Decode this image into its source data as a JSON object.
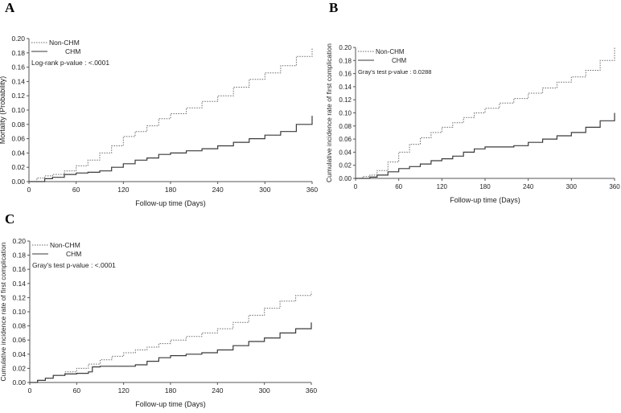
{
  "chart_data": [
    {
      "panel": "A",
      "type": "line",
      "title": "",
      "xlabel": "Follow-up time (Days)",
      "ylabel": "Mortality (Probability)",
      "xlim": [
        0,
        360
      ],
      "ylim": [
        0,
        0.2
      ],
      "xticks": [
        "0",
        "60",
        "120",
        "180",
        "240",
        "300",
        "360"
      ],
      "yticks": [
        "0.00",
        "0.02",
        "0.04",
        "0.06",
        "0.08",
        "0.10",
        "0.12",
        "0.14",
        "0.16",
        "0.18",
        "0.20"
      ],
      "legend": {
        "entries": [
          "Non-CHM",
          "CHM"
        ],
        "placement": "top-left"
      },
      "annotation": "Log-rank p-value : <.0001",
      "grid": false,
      "series": [
        {
          "name": "Non-CHM",
          "style": "dotted",
          "color": "#6a6a6a",
          "x": [
            0,
            10,
            20,
            30,
            45,
            60,
            75,
            90,
            105,
            120,
            135,
            150,
            165,
            180,
            200,
            220,
            240,
            260,
            280,
            300,
            320,
            340,
            360
          ],
          "y": [
            0,
            0.005,
            0.008,
            0.01,
            0.015,
            0.022,
            0.03,
            0.04,
            0.05,
            0.063,
            0.07,
            0.078,
            0.088,
            0.095,
            0.103,
            0.112,
            0.12,
            0.132,
            0.143,
            0.152,
            0.162,
            0.175,
            0.187
          ]
        },
        {
          "name": "CHM",
          "style": "solid",
          "color": "#3a3a3a",
          "x": [
            0,
            10,
            20,
            30,
            45,
            60,
            75,
            90,
            105,
            120,
            135,
            150,
            165,
            180,
            200,
            220,
            240,
            260,
            280,
            300,
            320,
            340,
            360
          ],
          "y": [
            0,
            0,
            0.004,
            0.006,
            0.01,
            0.012,
            0.013,
            0.015,
            0.02,
            0.025,
            0.03,
            0.033,
            0.038,
            0.04,
            0.043,
            0.046,
            0.05,
            0.055,
            0.06,
            0.065,
            0.07,
            0.08,
            0.092
          ]
        }
      ]
    },
    {
      "panel": "B",
      "type": "line",
      "title": "",
      "xlabel": "Follow-up time (Days)",
      "ylabel": "Cumulative incidence rate of first complication",
      "xlim": [
        0,
        360
      ],
      "ylim": [
        0,
        0.2
      ],
      "xticks": [
        "0",
        "60",
        "120",
        "180",
        "240",
        "300",
        "360"
      ],
      "yticks": [
        "0.00",
        "0.02",
        "0.04",
        "0.06",
        "0.08",
        "0.10",
        "0.12",
        "0.14",
        "0.16",
        "0.18",
        "0.20"
      ],
      "legend": {
        "entries": [
          "Non-CHM",
          "CHM"
        ],
        "placement": "top-left"
      },
      "annotation": "Gray's test p-value : 0.0288",
      "grid": false,
      "series": [
        {
          "name": "Non-CHM",
          "style": "dotted",
          "color": "#6a6a6a",
          "x": [
            0,
            10,
            20,
            30,
            45,
            60,
            75,
            90,
            105,
            120,
            135,
            150,
            165,
            180,
            200,
            220,
            240,
            260,
            280,
            300,
            320,
            340,
            360
          ],
          "y": [
            0,
            0.003,
            0.005,
            0.012,
            0.025,
            0.04,
            0.052,
            0.062,
            0.07,
            0.078,
            0.085,
            0.093,
            0.1,
            0.107,
            0.115,
            0.122,
            0.13,
            0.138,
            0.147,
            0.155,
            0.165,
            0.18,
            0.2
          ]
        },
        {
          "name": "CHM",
          "style": "solid",
          "color": "#3a3a3a",
          "x": [
            0,
            10,
            20,
            30,
            45,
            60,
            75,
            90,
            105,
            120,
            135,
            150,
            165,
            180,
            200,
            220,
            240,
            260,
            280,
            300,
            320,
            340,
            360
          ],
          "y": [
            0,
            0,
            0.002,
            0.005,
            0.01,
            0.015,
            0.018,
            0.022,
            0.027,
            0.03,
            0.034,
            0.04,
            0.045,
            0.048,
            0.048,
            0.05,
            0.055,
            0.06,
            0.065,
            0.07,
            0.078,
            0.088,
            0.1
          ]
        }
      ]
    },
    {
      "panel": "C",
      "type": "line",
      "title": "",
      "xlabel": "Follow-up time (Days)",
      "ylabel": "Cumulative incidence rate of first complication",
      "xlim": [
        0,
        360
      ],
      "ylim": [
        0,
        0.2
      ],
      "xticks": [
        "0",
        "60",
        "120",
        "180",
        "240",
        "300",
        "360"
      ],
      "yticks": [
        "0.00",
        "0.02",
        "0.04",
        "0.06",
        "0.08",
        "0.10",
        "0.12",
        "0.14",
        "0.16",
        "0.18",
        "0.20"
      ],
      "legend": {
        "entries": [
          "Non-CHM",
          "CHM"
        ],
        "placement": "top-left"
      },
      "annotation": "Gray's test p-value : <.0001",
      "grid": false,
      "series": [
        {
          "name": "Non-CHM",
          "style": "dotted",
          "color": "#6a6a6a",
          "x": [
            0,
            10,
            20,
            30,
            45,
            60,
            75,
            90,
            105,
            120,
            135,
            150,
            165,
            180,
            200,
            220,
            240,
            260,
            280,
            300,
            320,
            340,
            360
          ],
          "y": [
            0,
            0.003,
            0.006,
            0.01,
            0.015,
            0.02,
            0.026,
            0.032,
            0.037,
            0.042,
            0.046,
            0.05,
            0.055,
            0.06,
            0.065,
            0.07,
            0.076,
            0.085,
            0.095,
            0.105,
            0.115,
            0.123,
            0.128
          ]
        },
        {
          "name": "CHM",
          "style": "solid",
          "color": "#3a3a3a",
          "x": [
            0,
            10,
            20,
            30,
            45,
            60,
            75,
            80,
            90,
            105,
            120,
            135,
            150,
            165,
            180,
            200,
            220,
            240,
            260,
            280,
            300,
            320,
            340,
            360
          ],
          "y": [
            0,
            0.003,
            0.006,
            0.01,
            0.012,
            0.013,
            0.015,
            0.022,
            0.023,
            0.023,
            0.023,
            0.025,
            0.03,
            0.035,
            0.038,
            0.04,
            0.042,
            0.046,
            0.052,
            0.058,
            0.063,
            0.07,
            0.076,
            0.085
          ]
        }
      ]
    }
  ]
}
